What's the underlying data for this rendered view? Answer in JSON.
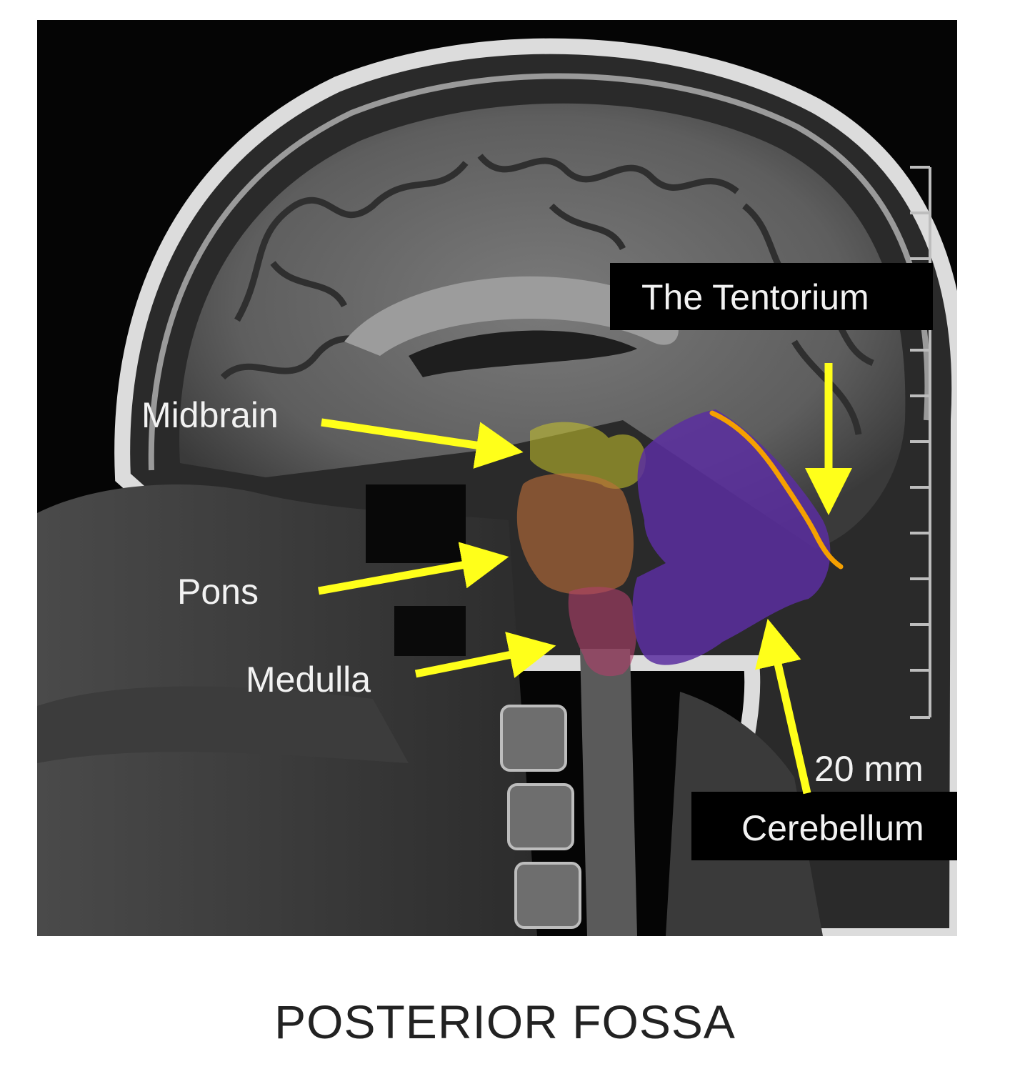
{
  "labels": {
    "midbrain": "Midbrain",
    "pons": "Pons",
    "medulla": "Medulla",
    "tentorium": "The Tentorium",
    "cerebellum": "Cerebellum",
    "scale": "20 mm"
  },
  "caption": "POSTERIOR FOSSA",
  "colors": {
    "arrow": "#ffff1a",
    "tentorium_line": "#f5a000",
    "midbrain_overlay": "#c8c42a",
    "pons_overlay": "#c0703a",
    "medulla_overlay": "#b0406a",
    "cerebellum_overlay": "#5a2ea0",
    "label_box": "#000000"
  }
}
